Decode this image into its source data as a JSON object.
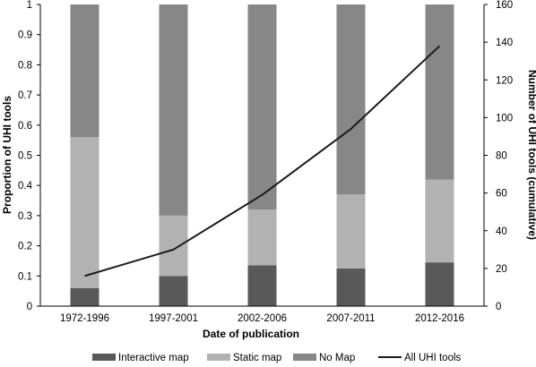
{
  "chart_data": {
    "type": "bar",
    "stacked": true,
    "categories": [
      "1972-1996",
      "1997-2001",
      "2002-2006",
      "2007-2011",
      "2012-2016"
    ],
    "xlabel": "Date of publication",
    "ylabel": "Proportion of UHI tools",
    "y2label": "Number of UHI tools (cumulative)",
    "ylim": [
      0,
      1
    ],
    "y2lim": [
      0,
      160
    ],
    "yticks": [
      "0",
      "0.1",
      "0.2",
      "0.3",
      "0.4",
      "0.5",
      "0.6",
      "0.7",
      "0.8",
      "0.9",
      "1"
    ],
    "y2ticks": [
      "0",
      "20",
      "40",
      "60",
      "80",
      "100",
      "120",
      "140",
      "160"
    ],
    "series": [
      {
        "name": "Interactive map",
        "type": "bar",
        "color": "#595959",
        "values": [
          0.06,
          0.1,
          0.135,
          0.125,
          0.145
        ]
      },
      {
        "name": "Static map",
        "type": "bar",
        "color": "#b2b2b2",
        "values": [
          0.5,
          0.2,
          0.185,
          0.245,
          0.275
        ]
      },
      {
        "name": "No Map",
        "type": "bar",
        "color": "#878787",
        "values": [
          0.44,
          0.7,
          0.68,
          0.63,
          0.58
        ]
      },
      {
        "name": "All UHI tools",
        "type": "line",
        "axis": "right",
        "color": "#1a1a1a",
        "values": [
          16,
          30,
          59,
          94,
          138
        ]
      }
    ],
    "grid": false,
    "legend_position": "bottom"
  }
}
